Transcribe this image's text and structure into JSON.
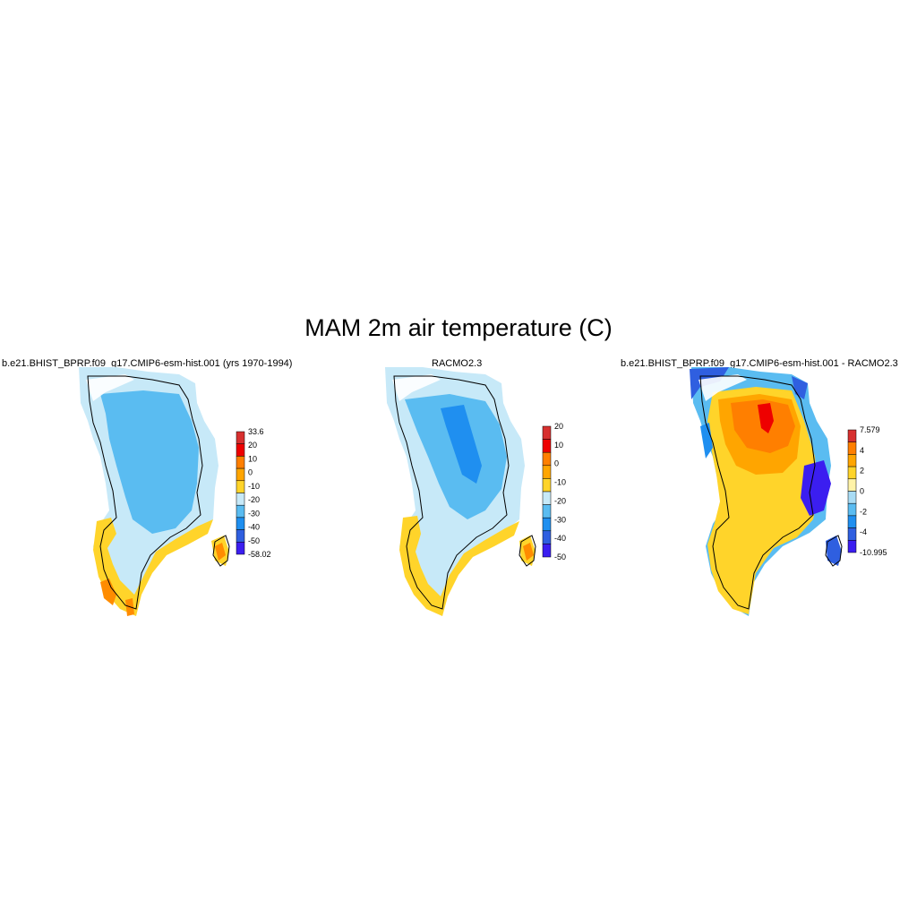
{
  "title": "MAM 2m air temperature (C)",
  "panels": [
    {
      "title": "b.e21.BHIST_BPRP.f09_g17.CMIP6-esm-hist.001 (yrs 1970-1994)",
      "colorbar": {
        "labels": [
          "33.6",
          "20",
          "10",
          "0",
          "-10",
          "-20",
          "-30",
          "-40",
          "-50",
          "-58.02"
        ],
        "colors": [
          "#d7302f",
          "#ee0000",
          "#ff7f00",
          "#ffa500",
          "#ffd42a",
          "#c7e9f8",
          "#5abcf1",
          "#1f8ff0",
          "#2f5fe0",
          "#3b1ef0"
        ]
      }
    },
    {
      "title": "RACMO2.3",
      "colorbar": {
        "labels": [
          "20",
          "10",
          "0",
          "-10",
          "-20",
          "-30",
          "-40",
          "-50"
        ],
        "colors": [
          "#d7302f",
          "#ee0000",
          "#ff7f00",
          "#ffa500",
          "#ffd42a",
          "#c7e9f8",
          "#5abcf1",
          "#1f8ff0",
          "#2f5fe0",
          "#3b1ef0"
        ]
      }
    },
    {
      "title": "b.e21.BHIST_BPRP.f09_g17.CMIP6-esm-hist.001 - RACMO2.3",
      "colorbar": {
        "labels": [
          "7.579",
          "4",
          "2",
          "0",
          "-2",
          "-4",
          "-10.995"
        ],
        "colors": [
          "#d7302f",
          "#ff7f00",
          "#ffa500",
          "#ffd42a",
          "#fff3a8",
          "#a9dcf4",
          "#5abcf1",
          "#1f8ff0",
          "#2f5fe0",
          "#3b1ef0"
        ]
      }
    }
  ]
}
